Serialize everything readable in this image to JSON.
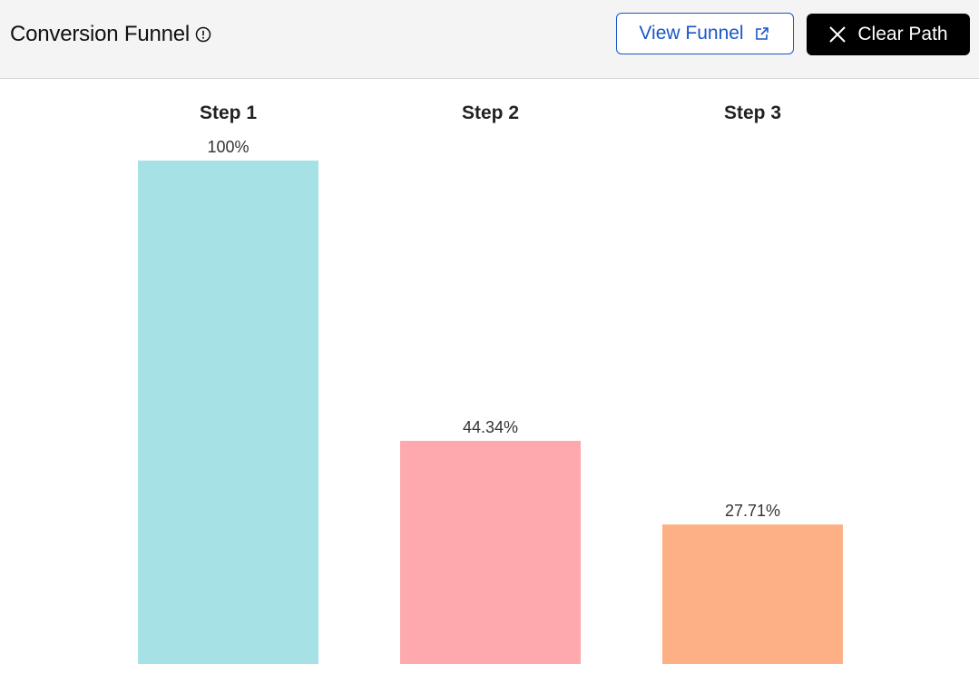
{
  "header": {
    "title": "Conversion Funnel",
    "info_icon": "info-circle-icon",
    "view_funnel_label": "View Funnel",
    "view_funnel_icon": "external-link-icon",
    "clear_path_label": "Clear Path",
    "clear_path_icon": "close-icon"
  },
  "colors": {
    "accent_blue": "#1a56c9",
    "header_bg": "#f4f4f4",
    "clear_button_bg": "#000000"
  },
  "chart_data": {
    "type": "bar",
    "categories": [
      "Step 1",
      "Step 2",
      "Step 3"
    ],
    "values": [
      100,
      44.34,
      27.71
    ],
    "value_labels": [
      "100%",
      "44.34%",
      "27.71%"
    ],
    "colors": [
      "#a6e1e6",
      "#fda9ad",
      "#fdb085"
    ],
    "ylim": [
      0,
      100
    ],
    "grid": false,
    "legend": "none"
  }
}
